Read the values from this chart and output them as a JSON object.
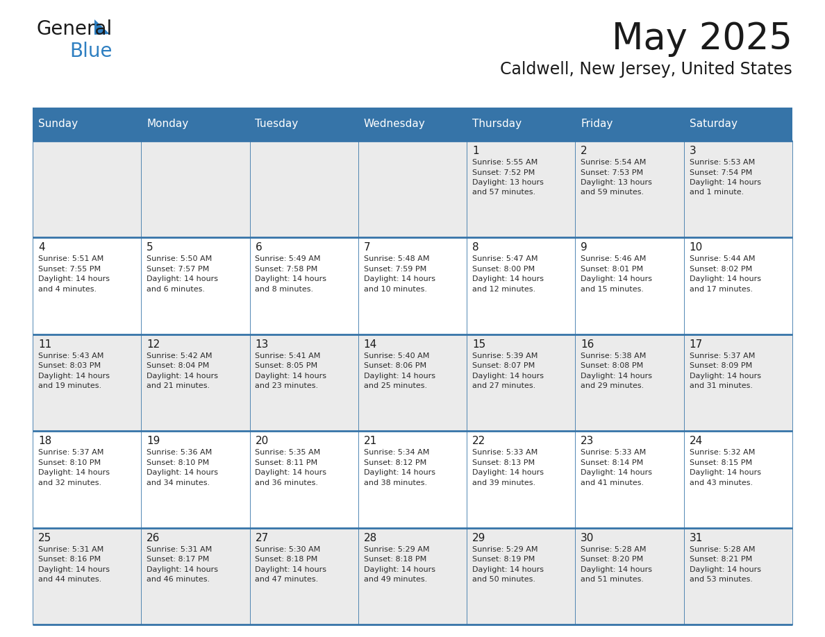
{
  "title": "May 2025",
  "subtitle": "Caldwell, New Jersey, United States",
  "header_color": "#3674a8",
  "header_text_color": "#ffffff",
  "row_bg_odd": "#ebebeb",
  "row_bg_even": "#ffffff",
  "text_color": "#2a2a2a",
  "day_number_color": "#1a1a1a",
  "grid_line_color": "#3674a8",
  "days_of_week": [
    "Sunday",
    "Monday",
    "Tuesday",
    "Wednesday",
    "Thursday",
    "Friday",
    "Saturday"
  ],
  "weeks": [
    [
      {
        "day": "",
        "info": ""
      },
      {
        "day": "",
        "info": ""
      },
      {
        "day": "",
        "info": ""
      },
      {
        "day": "",
        "info": ""
      },
      {
        "day": "1",
        "info": "Sunrise: 5:55 AM\nSunset: 7:52 PM\nDaylight: 13 hours\nand 57 minutes."
      },
      {
        "day": "2",
        "info": "Sunrise: 5:54 AM\nSunset: 7:53 PM\nDaylight: 13 hours\nand 59 minutes."
      },
      {
        "day": "3",
        "info": "Sunrise: 5:53 AM\nSunset: 7:54 PM\nDaylight: 14 hours\nand 1 minute."
      }
    ],
    [
      {
        "day": "4",
        "info": "Sunrise: 5:51 AM\nSunset: 7:55 PM\nDaylight: 14 hours\nand 4 minutes."
      },
      {
        "day": "5",
        "info": "Sunrise: 5:50 AM\nSunset: 7:57 PM\nDaylight: 14 hours\nand 6 minutes."
      },
      {
        "day": "6",
        "info": "Sunrise: 5:49 AM\nSunset: 7:58 PM\nDaylight: 14 hours\nand 8 minutes."
      },
      {
        "day": "7",
        "info": "Sunrise: 5:48 AM\nSunset: 7:59 PM\nDaylight: 14 hours\nand 10 minutes."
      },
      {
        "day": "8",
        "info": "Sunrise: 5:47 AM\nSunset: 8:00 PM\nDaylight: 14 hours\nand 12 minutes."
      },
      {
        "day": "9",
        "info": "Sunrise: 5:46 AM\nSunset: 8:01 PM\nDaylight: 14 hours\nand 15 minutes."
      },
      {
        "day": "10",
        "info": "Sunrise: 5:44 AM\nSunset: 8:02 PM\nDaylight: 14 hours\nand 17 minutes."
      }
    ],
    [
      {
        "day": "11",
        "info": "Sunrise: 5:43 AM\nSunset: 8:03 PM\nDaylight: 14 hours\nand 19 minutes."
      },
      {
        "day": "12",
        "info": "Sunrise: 5:42 AM\nSunset: 8:04 PM\nDaylight: 14 hours\nand 21 minutes."
      },
      {
        "day": "13",
        "info": "Sunrise: 5:41 AM\nSunset: 8:05 PM\nDaylight: 14 hours\nand 23 minutes."
      },
      {
        "day": "14",
        "info": "Sunrise: 5:40 AM\nSunset: 8:06 PM\nDaylight: 14 hours\nand 25 minutes."
      },
      {
        "day": "15",
        "info": "Sunrise: 5:39 AM\nSunset: 8:07 PM\nDaylight: 14 hours\nand 27 minutes."
      },
      {
        "day": "16",
        "info": "Sunrise: 5:38 AM\nSunset: 8:08 PM\nDaylight: 14 hours\nand 29 minutes."
      },
      {
        "day": "17",
        "info": "Sunrise: 5:37 AM\nSunset: 8:09 PM\nDaylight: 14 hours\nand 31 minutes."
      }
    ],
    [
      {
        "day": "18",
        "info": "Sunrise: 5:37 AM\nSunset: 8:10 PM\nDaylight: 14 hours\nand 32 minutes."
      },
      {
        "day": "19",
        "info": "Sunrise: 5:36 AM\nSunset: 8:10 PM\nDaylight: 14 hours\nand 34 minutes."
      },
      {
        "day": "20",
        "info": "Sunrise: 5:35 AM\nSunset: 8:11 PM\nDaylight: 14 hours\nand 36 minutes."
      },
      {
        "day": "21",
        "info": "Sunrise: 5:34 AM\nSunset: 8:12 PM\nDaylight: 14 hours\nand 38 minutes."
      },
      {
        "day": "22",
        "info": "Sunrise: 5:33 AM\nSunset: 8:13 PM\nDaylight: 14 hours\nand 39 minutes."
      },
      {
        "day": "23",
        "info": "Sunrise: 5:33 AM\nSunset: 8:14 PM\nDaylight: 14 hours\nand 41 minutes."
      },
      {
        "day": "24",
        "info": "Sunrise: 5:32 AM\nSunset: 8:15 PM\nDaylight: 14 hours\nand 43 minutes."
      }
    ],
    [
      {
        "day": "25",
        "info": "Sunrise: 5:31 AM\nSunset: 8:16 PM\nDaylight: 14 hours\nand 44 minutes."
      },
      {
        "day": "26",
        "info": "Sunrise: 5:31 AM\nSunset: 8:17 PM\nDaylight: 14 hours\nand 46 minutes."
      },
      {
        "day": "27",
        "info": "Sunrise: 5:30 AM\nSunset: 8:18 PM\nDaylight: 14 hours\nand 47 minutes."
      },
      {
        "day": "28",
        "info": "Sunrise: 5:29 AM\nSunset: 8:18 PM\nDaylight: 14 hours\nand 49 minutes."
      },
      {
        "day": "29",
        "info": "Sunrise: 5:29 AM\nSunset: 8:19 PM\nDaylight: 14 hours\nand 50 minutes."
      },
      {
        "day": "30",
        "info": "Sunrise: 5:28 AM\nSunset: 8:20 PM\nDaylight: 14 hours\nand 51 minutes."
      },
      {
        "day": "31",
        "info": "Sunrise: 5:28 AM\nSunset: 8:21 PM\nDaylight: 14 hours\nand 53 minutes."
      }
    ]
  ],
  "logo_general_color": "#1a1a1a",
  "logo_blue_color": "#2e7fc1",
  "logo_triangle_color": "#2e7fc1",
  "title_fontsize": 38,
  "subtitle_fontsize": 17,
  "header_fontsize": 11,
  "day_num_fontsize": 11,
  "info_fontsize": 8
}
